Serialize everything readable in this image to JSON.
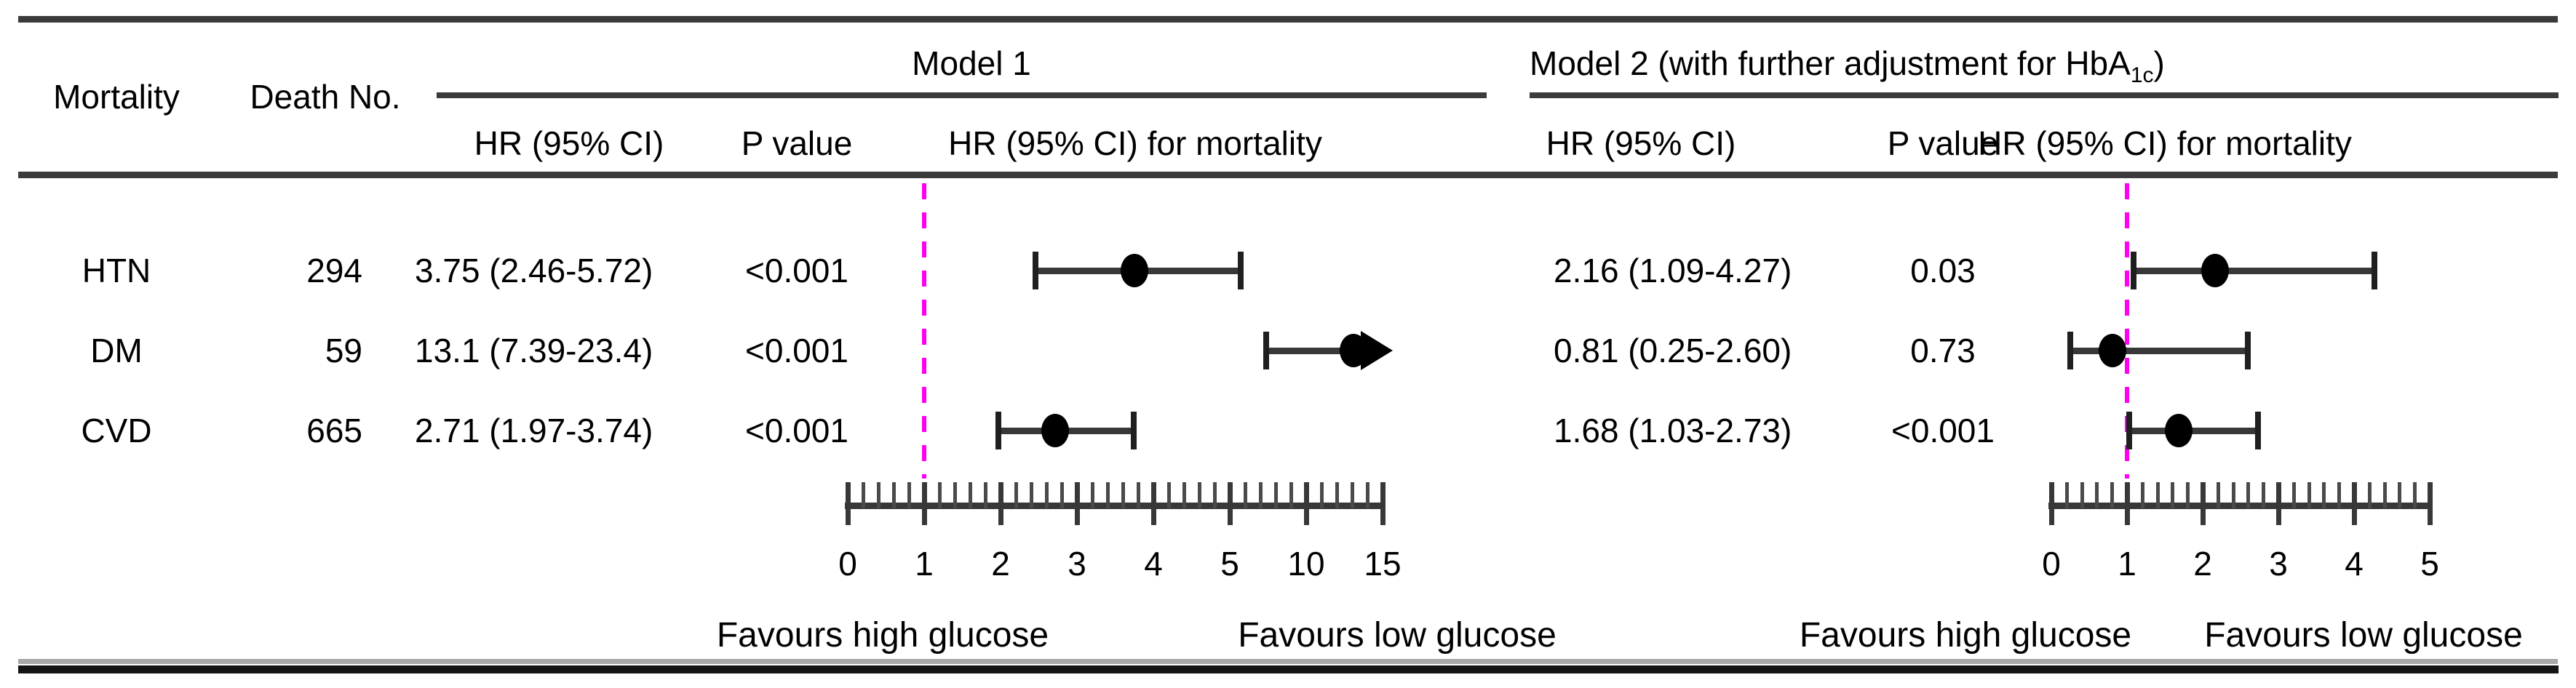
{
  "figure": {
    "col_mortality": "Mortality",
    "col_death_no": "Death No."
  },
  "chart_data": [
    {
      "type": "forest",
      "title": "Model 1",
      "columns": {
        "hr": "HR (95% CI)",
        "p": "P value",
        "plot": "HR (95% CI) for mortality"
      },
      "rows": [
        {
          "label": "HTN",
          "death_no": "294",
          "hr_text": "3.75 (2.46-5.72)",
          "p": "<0.001",
          "hr": 3.75,
          "ci_low": 2.46,
          "ci_high": 5.72,
          "ci_high_clipped": false
        },
        {
          "label": "DM",
          "death_no": "59",
          "hr_text": "13.1 (7.39-23.4)",
          "p": "<0.001",
          "hr": 13.1,
          "ci_low": 7.39,
          "ci_high": 23.4,
          "ci_high_clipped": true
        },
        {
          "label": "CVD",
          "death_no": "665",
          "hr_text": "2.71 (1.97-3.74)",
          "p": "<0.001",
          "hr": 2.71,
          "ci_low": 1.97,
          "ci_high": 3.74,
          "ci_high_clipped": false
        }
      ],
      "axis": {
        "major_ticks": [
          0,
          1,
          2,
          3,
          4,
          5,
          10,
          15
        ],
        "minor_subdivisions": 5,
        "range": [
          0,
          15
        ],
        "scale_note": "equal pixel spacing between consecutive major ticks (compressed above 5)",
        "reference_line": 1
      },
      "reference_line_color": "#ff00f0",
      "favours_left": "Favours high glucose",
      "favours_right": "Favours low glucose"
    },
    {
      "type": "forest",
      "title_main": "Model 2 (with further adjustment for HbA",
      "title_sub": "1c",
      "title_close": ")",
      "columns": {
        "hr": "HR (95% CI)",
        "p": "P value",
        "plot": "HR (95% CI) for mortality"
      },
      "rows": [
        {
          "label": "HTN",
          "death_no": "294",
          "hr_text": "2.16 (1.09-4.27)",
          "p": "0.03",
          "hr": 2.16,
          "ci_low": 1.09,
          "ci_high": 4.27,
          "ci_high_clipped": false
        },
        {
          "label": "DM",
          "death_no": "59",
          "hr_text": "0.81 (0.25-2.60)",
          "p": "0.73",
          "hr": 0.81,
          "ci_low": 0.25,
          "ci_high": 2.6,
          "ci_high_clipped": false
        },
        {
          "label": "CVD",
          "death_no": "665",
          "hr_text": "1.68 (1.03-2.73)",
          "p": "<0.001",
          "hr": 1.68,
          "ci_low": 1.03,
          "ci_high": 2.73,
          "ci_high_clipped": false
        }
      ],
      "axis": {
        "major_ticks": [
          0,
          1,
          2,
          3,
          4,
          5
        ],
        "minor_subdivisions": 5,
        "range": [
          0,
          5
        ],
        "scale_note": "linear",
        "reference_line": 1
      },
      "reference_line_color": "#ff00f0",
      "favours_left": "Favours high glucose",
      "favours_right": "Favours low glucose"
    }
  ]
}
